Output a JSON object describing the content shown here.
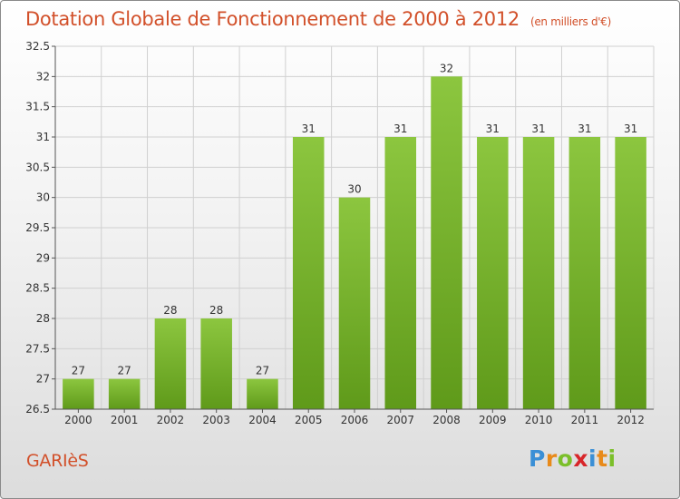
{
  "chart_data": {
    "type": "bar",
    "title": "Dotation Globale de Fonctionnement de 2000 à 2012",
    "subtitle": "(en milliers d'€)",
    "categories": [
      "2000",
      "2001",
      "2002",
      "2003",
      "2004",
      "2005",
      "2006",
      "2007",
      "2008",
      "2009",
      "2010",
      "2011",
      "2012"
    ],
    "values": [
      27,
      27,
      28,
      28,
      27,
      31,
      30,
      31,
      32,
      31,
      31,
      31,
      31
    ],
    "ylim": [
      26.5,
      32.5
    ],
    "yticks": [
      26.5,
      27,
      27.5,
      28,
      28.5,
      29,
      29.5,
      30,
      30.5,
      31,
      31.5,
      32,
      32.5
    ],
    "ytick_labels": [
      "26.5",
      "27",
      "27.5",
      "28",
      "28.5",
      "29",
      "29.5",
      "30",
      "30.5",
      "31",
      "31.5",
      "32",
      "32.5"
    ],
    "xlabel": "",
    "ylabel": "",
    "grid": true,
    "bar_color": "#8cc63f",
    "bar_color_dark": "#5f9a1a"
  },
  "footer": {
    "entity": "GARIèS",
    "brand_letters": [
      {
        "ch": "P",
        "color": "#3a8fd6"
      },
      {
        "ch": "r",
        "color": "#e88a1a"
      },
      {
        "ch": "o",
        "color": "#7bbf2a"
      },
      {
        "ch": "x",
        "color": "#d8262a"
      },
      {
        "ch": "i",
        "color": "#3a8fd6"
      },
      {
        "ch": "t",
        "color": "#e88a1a"
      },
      {
        "ch": "i",
        "color": "#7bbf2a"
      }
    ]
  }
}
